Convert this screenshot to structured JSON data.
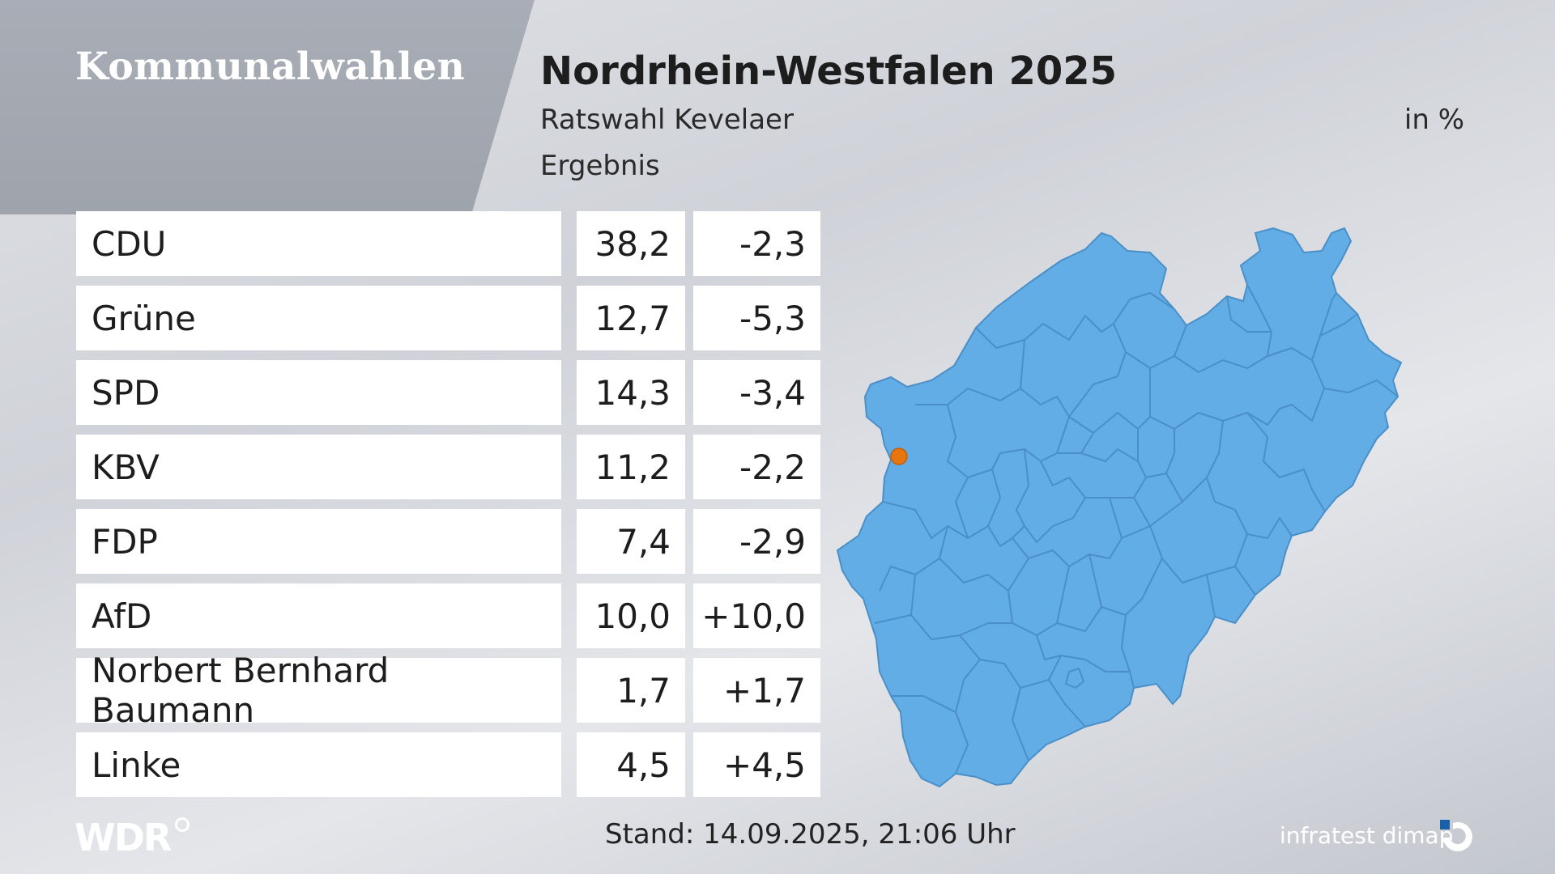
{
  "header": {
    "brand": "Kommunalwahlen",
    "title": "Nordrhein-Westfalen 2025",
    "subtitle": "Ratswahl Kevelaer",
    "description": "Ergebnis",
    "unit": "in %"
  },
  "results": [
    {
      "party": "CDU",
      "value": "38,2",
      "diff": "-2,3"
    },
    {
      "party": "Grüne",
      "value": "12,7",
      "diff": "-5,3"
    },
    {
      "party": "SPD",
      "value": "14,3",
      "diff": "-3,4"
    },
    {
      "party": "KBV",
      "value": "11,2",
      "diff": "-2,2"
    },
    {
      "party": "FDP",
      "value": "7,4",
      "diff": "-2,9"
    },
    {
      "party": "AfD",
      "value": "10,0",
      "diff": "+10,0"
    },
    {
      "party": "Norbert Bernhard Baumann",
      "value": "1,7",
      "diff": "+1,7"
    },
    {
      "party": "Linke",
      "value": "4,5",
      "diff": "+4,5"
    }
  ],
  "footer": {
    "stand": "Stand: 14.09.2025, 21:06 Uhr",
    "broadcaster": "WDR",
    "pollster": "infratest dimap"
  },
  "colors": {
    "map_fill": "#62ade6",
    "map_border": "#4a8fc8",
    "highlight": "#e8760f"
  }
}
